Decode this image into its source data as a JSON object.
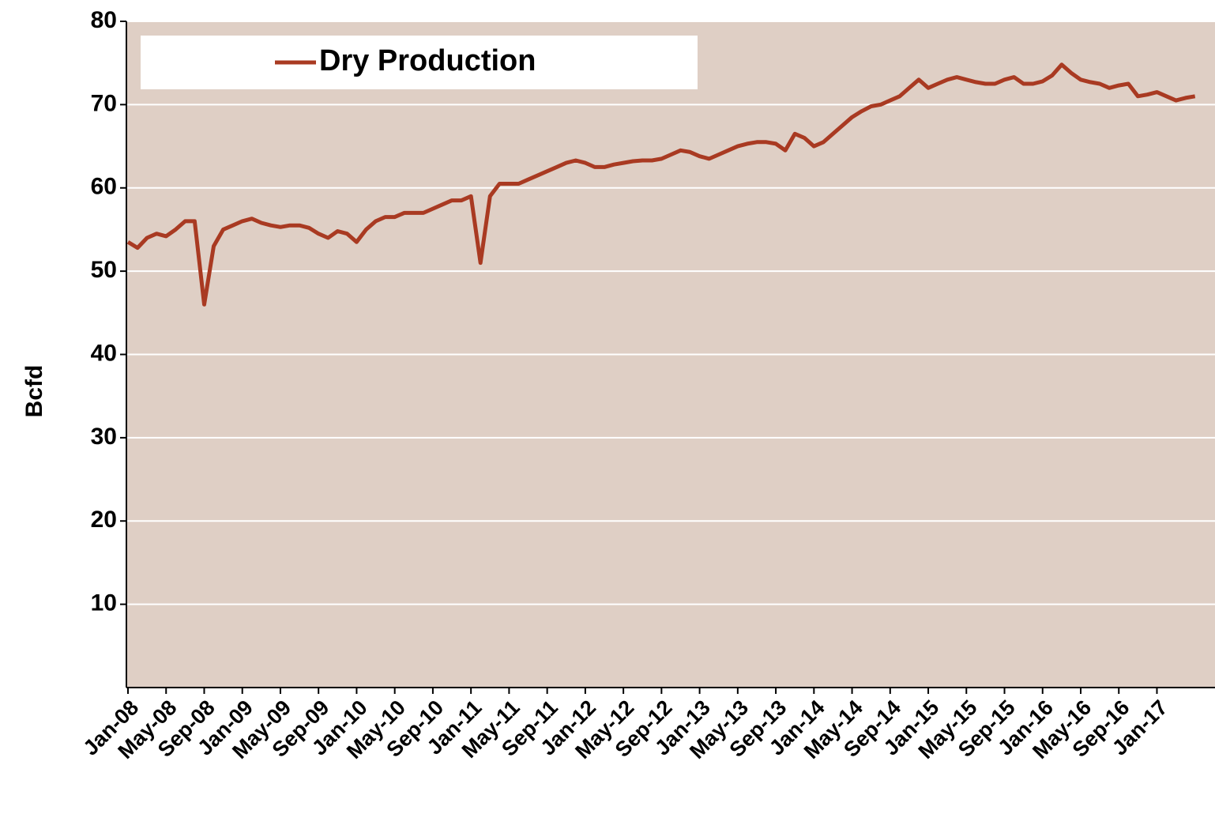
{
  "chart_data": {
    "type": "line",
    "y_label": "Bcfd",
    "x": [
      "Jan-08",
      "Feb-08",
      "Mar-08",
      "Apr-08",
      "May-08",
      "Jun-08",
      "Jul-08",
      "Aug-08",
      "Sep-08",
      "Oct-08",
      "Nov-08",
      "Dec-08",
      "Jan-09",
      "Feb-09",
      "Mar-09",
      "Apr-09",
      "May-09",
      "Jun-09",
      "Jul-09",
      "Aug-09",
      "Sep-09",
      "Oct-09",
      "Nov-09",
      "Dec-09",
      "Jan-10",
      "Feb-10",
      "Mar-10",
      "Apr-10",
      "May-10",
      "Jun-10",
      "Jul-10",
      "Aug-10",
      "Sep-10",
      "Oct-10",
      "Nov-10",
      "Dec-10",
      "Jan-11",
      "Feb-11",
      "Mar-11",
      "Apr-11",
      "May-11",
      "Jun-11",
      "Jul-11",
      "Aug-11",
      "Sep-11",
      "Oct-11",
      "Nov-11",
      "Dec-11",
      "Jan-12",
      "Feb-12",
      "Mar-12",
      "Apr-12",
      "May-12",
      "Jun-12",
      "Jul-12",
      "Aug-12",
      "Sep-12",
      "Oct-12",
      "Nov-12",
      "Dec-12",
      "Jan-13",
      "Feb-13",
      "Mar-13",
      "Apr-13",
      "May-13",
      "Jun-13",
      "Jul-13",
      "Aug-13",
      "Sep-13",
      "Oct-13",
      "Nov-13",
      "Dec-13",
      "Jan-14",
      "Feb-14",
      "Mar-14",
      "Apr-14",
      "May-14",
      "Jun-14",
      "Jul-14",
      "Aug-14",
      "Sep-14",
      "Oct-14",
      "Nov-14",
      "Dec-14",
      "Jan-15",
      "Feb-15",
      "Mar-15",
      "Apr-15",
      "May-15",
      "Jun-15",
      "Jul-15",
      "Aug-15",
      "Sep-15",
      "Oct-15",
      "Nov-15",
      "Dec-15",
      "Jan-16",
      "Feb-16",
      "Mar-16",
      "Apr-16",
      "May-16",
      "Jun-16",
      "Jul-16",
      "Aug-16",
      "Sep-16",
      "Oct-16",
      "Nov-16",
      "Dec-16",
      "Jan-17",
      "Feb-17",
      "Mar-17",
      "Apr-17",
      "May-17"
    ],
    "series": [
      {
        "name": "Dry Production",
        "color": "#a93a22",
        "values": [
          53.5,
          52.8,
          54,
          54.5,
          54.2,
          55,
          56,
          56,
          46,
          53,
          55,
          55.5,
          56,
          56.3,
          55.8,
          55.5,
          55.3,
          55.5,
          55.5,
          55.2,
          54.5,
          54,
          54.8,
          54.5,
          53.5,
          55,
          56,
          56.5,
          56.5,
          57,
          57,
          57,
          57.5,
          58,
          58.5,
          58.5,
          59,
          51,
          59,
          60.5,
          60.5,
          60.5,
          61,
          61.5,
          62,
          62.5,
          63,
          63.3,
          63,
          62.5,
          62.5,
          62.8,
          63,
          63.2,
          63.3,
          63.3,
          63.5,
          64,
          64.5,
          64.3,
          63.8,
          63.5,
          64,
          64.5,
          65,
          65.3,
          65.5,
          65.5,
          65.3,
          64.5,
          66.5,
          66,
          65,
          65.5,
          66.5,
          67.5,
          68.5,
          69.2,
          69.8,
          70,
          70.5,
          71,
          72,
          73,
          72,
          72.5,
          73,
          73.3,
          73,
          72.7,
          72.5,
          72.5,
          73,
          73.3,
          72.5,
          72.5,
          72.8,
          73.5,
          74.8,
          73.8,
          73,
          72.7,
          72.5,
          72,
          72.3,
          72.5,
          71,
          71.2,
          71.5,
          71,
          70.5,
          70.8,
          71
        ]
      }
    ],
    "xticks": [
      "Jan-08",
      "May-08",
      "Sep-08",
      "Jan-09",
      "May-09",
      "Sep-09",
      "Jan-10",
      "May-10",
      "Sep-10",
      "Jan-11",
      "May-11",
      "Sep-11",
      "Jan-12",
      "May-12",
      "Sep-12",
      "Jan-13",
      "May-13",
      "Sep-13",
      "Jan-14",
      "May-14",
      "Sep-14",
      "Jan-15",
      "May-15",
      "Sep-15",
      "Jan-16",
      "May-16",
      "Sep-16",
      "Jan-17"
    ],
    "ylim": [
      0,
      80
    ],
    "yticks": [
      10,
      20,
      30,
      40,
      50,
      60,
      70,
      80
    ],
    "grid": true,
    "legend": "top-left",
    "background": "#dfcfc5"
  }
}
